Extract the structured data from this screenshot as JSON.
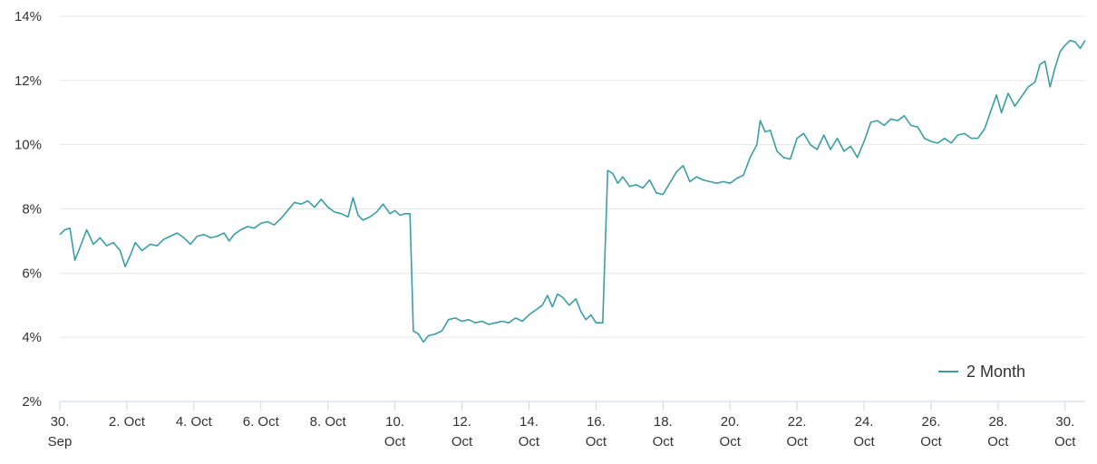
{
  "chart_data": {
    "type": "line",
    "title": "",
    "xlabel": "",
    "ylabel": "",
    "ylim": [
      2,
      14
    ],
    "y_ticks": [
      "2%",
      "4%",
      "6%",
      "8%",
      "10%",
      "12%",
      "14%"
    ],
    "y_tick_values": [
      2,
      4,
      6,
      8,
      10,
      12,
      14
    ],
    "x_range": [
      0,
      30.6
    ],
    "x_ticks": [
      {
        "day": 0,
        "line1": "30.",
        "line2": "Sep"
      },
      {
        "day": 2,
        "line1": "2. Oct",
        "line2": ""
      },
      {
        "day": 4,
        "line1": "4. Oct",
        "line2": ""
      },
      {
        "day": 6,
        "line1": "6. Oct",
        "line2": ""
      },
      {
        "day": 8,
        "line1": "8. Oct",
        "line2": ""
      },
      {
        "day": 10,
        "line1": "10.",
        "line2": "Oct"
      },
      {
        "day": 12,
        "line1": "12.",
        "line2": "Oct"
      },
      {
        "day": 14,
        "line1": "14.",
        "line2": "Oct"
      },
      {
        "day": 16,
        "line1": "16.",
        "line2": "Oct"
      },
      {
        "day": 18,
        "line1": "18.",
        "line2": "Oct"
      },
      {
        "day": 20,
        "line1": "20.",
        "line2": "Oct"
      },
      {
        "day": 22,
        "line1": "22.",
        "line2": "Oct"
      },
      {
        "day": 24,
        "line1": "24.",
        "line2": "Oct"
      },
      {
        "day": 26,
        "line1": "26.",
        "line2": "Oct"
      },
      {
        "day": 28,
        "line1": "28.",
        "line2": "Oct"
      },
      {
        "day": 30,
        "line1": "30.",
        "line2": "Oct"
      }
    ],
    "grid": true,
    "legend_position": "bottom-right",
    "series": [
      {
        "name": "2 Month",
        "color": "#3a9ea5",
        "points": [
          [
            0.0,
            7.2
          ],
          [
            0.15,
            7.35
          ],
          [
            0.3,
            7.4
          ],
          [
            0.45,
            6.4
          ],
          [
            0.6,
            6.8
          ],
          [
            0.8,
            7.35
          ],
          [
            1.0,
            6.9
          ],
          [
            1.2,
            7.1
          ],
          [
            1.4,
            6.85
          ],
          [
            1.6,
            6.95
          ],
          [
            1.8,
            6.7
          ],
          [
            1.95,
            6.2
          ],
          [
            2.1,
            6.55
          ],
          [
            2.25,
            6.95
          ],
          [
            2.45,
            6.7
          ],
          [
            2.7,
            6.9
          ],
          [
            2.9,
            6.85
          ],
          [
            3.1,
            7.05
          ],
          [
            3.3,
            7.15
          ],
          [
            3.5,
            7.25
          ],
          [
            3.7,
            7.1
          ],
          [
            3.9,
            6.9
          ],
          [
            4.1,
            7.15
          ],
          [
            4.3,
            7.2
          ],
          [
            4.5,
            7.1
          ],
          [
            4.7,
            7.15
          ],
          [
            4.9,
            7.25
          ],
          [
            5.05,
            7.0
          ],
          [
            5.2,
            7.2
          ],
          [
            5.4,
            7.35
          ],
          [
            5.6,
            7.45
          ],
          [
            5.8,
            7.4
          ],
          [
            6.0,
            7.55
          ],
          [
            6.2,
            7.6
          ],
          [
            6.4,
            7.5
          ],
          [
            6.6,
            7.7
          ],
          [
            6.8,
            7.95
          ],
          [
            7.0,
            8.2
          ],
          [
            7.2,
            8.15
          ],
          [
            7.4,
            8.25
          ],
          [
            7.6,
            8.05
          ],
          [
            7.8,
            8.3
          ],
          [
            8.0,
            8.05
          ],
          [
            8.2,
            7.9
          ],
          [
            8.4,
            7.85
          ],
          [
            8.6,
            7.75
          ],
          [
            8.75,
            8.35
          ],
          [
            8.9,
            7.8
          ],
          [
            9.05,
            7.65
          ],
          [
            9.25,
            7.75
          ],
          [
            9.45,
            7.9
          ],
          [
            9.65,
            8.15
          ],
          [
            9.85,
            7.85
          ],
          [
            10.0,
            7.95
          ],
          [
            10.15,
            7.8
          ],
          [
            10.3,
            7.85
          ],
          [
            10.45,
            7.85
          ],
          [
            10.55,
            4.2
          ],
          [
            10.7,
            4.1
          ],
          [
            10.85,
            3.85
          ],
          [
            11.0,
            4.05
          ],
          [
            11.2,
            4.1
          ],
          [
            11.4,
            4.2
          ],
          [
            11.6,
            4.55
          ],
          [
            11.8,
            4.6
          ],
          [
            12.0,
            4.5
          ],
          [
            12.2,
            4.55
          ],
          [
            12.4,
            4.45
          ],
          [
            12.6,
            4.5
          ],
          [
            12.8,
            4.4
          ],
          [
            13.0,
            4.45
          ],
          [
            13.2,
            4.5
          ],
          [
            13.4,
            4.45
          ],
          [
            13.6,
            4.6
          ],
          [
            13.8,
            4.5
          ],
          [
            14.0,
            4.7
          ],
          [
            14.2,
            4.85
          ],
          [
            14.4,
            5.0
          ],
          [
            14.55,
            5.3
          ],
          [
            14.7,
            4.95
          ],
          [
            14.85,
            5.35
          ],
          [
            15.0,
            5.25
          ],
          [
            15.2,
            5.0
          ],
          [
            15.4,
            5.2
          ],
          [
            15.55,
            4.8
          ],
          [
            15.7,
            4.55
          ],
          [
            15.85,
            4.7
          ],
          [
            16.0,
            4.45
          ],
          [
            16.2,
            4.45
          ],
          [
            16.35,
            9.2
          ],
          [
            16.5,
            9.1
          ],
          [
            16.65,
            8.8
          ],
          [
            16.8,
            9.0
          ],
          [
            17.0,
            8.7
          ],
          [
            17.2,
            8.75
          ],
          [
            17.4,
            8.65
          ],
          [
            17.6,
            8.9
          ],
          [
            17.8,
            8.5
          ],
          [
            18.0,
            8.45
          ],
          [
            18.2,
            8.8
          ],
          [
            18.4,
            9.15
          ],
          [
            18.6,
            9.35
          ],
          [
            18.8,
            8.85
          ],
          [
            19.0,
            9.0
          ],
          [
            19.2,
            8.9
          ],
          [
            19.4,
            8.85
          ],
          [
            19.6,
            8.8
          ],
          [
            19.8,
            8.85
          ],
          [
            20.0,
            8.8
          ],
          [
            20.2,
            8.95
          ],
          [
            20.4,
            9.05
          ],
          [
            20.6,
            9.6
          ],
          [
            20.8,
            10.0
          ],
          [
            20.9,
            10.75
          ],
          [
            21.05,
            10.4
          ],
          [
            21.2,
            10.45
          ],
          [
            21.4,
            9.8
          ],
          [
            21.6,
            9.6
          ],
          [
            21.8,
            9.55
          ],
          [
            22.0,
            10.2
          ],
          [
            22.2,
            10.35
          ],
          [
            22.4,
            10.0
          ],
          [
            22.6,
            9.85
          ],
          [
            22.8,
            10.3
          ],
          [
            23.0,
            9.85
          ],
          [
            23.2,
            10.2
          ],
          [
            23.4,
            9.8
          ],
          [
            23.6,
            9.95
          ],
          [
            23.8,
            9.6
          ],
          [
            24.0,
            10.1
          ],
          [
            24.2,
            10.7
          ],
          [
            24.4,
            10.75
          ],
          [
            24.6,
            10.6
          ],
          [
            24.8,
            10.8
          ],
          [
            25.0,
            10.75
          ],
          [
            25.2,
            10.9
          ],
          [
            25.4,
            10.6
          ],
          [
            25.6,
            10.55
          ],
          [
            25.8,
            10.2
          ],
          [
            26.0,
            10.1
          ],
          [
            26.2,
            10.05
          ],
          [
            26.4,
            10.2
          ],
          [
            26.6,
            10.05
          ],
          [
            26.8,
            10.3
          ],
          [
            27.0,
            10.35
          ],
          [
            27.2,
            10.2
          ],
          [
            27.4,
            10.2
          ],
          [
            27.6,
            10.5
          ],
          [
            27.8,
            11.1
          ],
          [
            27.95,
            11.55
          ],
          [
            28.1,
            11.0
          ],
          [
            28.3,
            11.6
          ],
          [
            28.5,
            11.2
          ],
          [
            28.7,
            11.5
          ],
          [
            28.9,
            11.8
          ],
          [
            29.1,
            11.95
          ],
          [
            29.25,
            12.5
          ],
          [
            29.4,
            12.6
          ],
          [
            29.55,
            11.8
          ],
          [
            29.7,
            12.4
          ],
          [
            29.85,
            12.9
          ],
          [
            30.0,
            13.1
          ],
          [
            30.15,
            13.25
          ],
          [
            30.3,
            13.2
          ],
          [
            30.45,
            13.0
          ],
          [
            30.6,
            13.25
          ]
        ]
      }
    ]
  }
}
